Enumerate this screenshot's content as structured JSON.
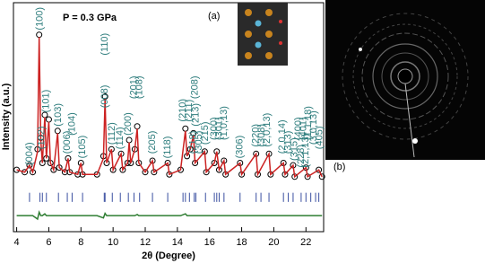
{
  "chart_data": {
    "type": "line",
    "x_label": "2θ (Degree)",
    "y_label": "Intensity (a.u.)",
    "annotations": [
      "P = 0.3 GPa",
      "(a)",
      "(b)"
    ],
    "xlim": [
      3.8,
      23.1
    ],
    "ylim": [
      0,
      100
    ],
    "xticks": [
      4,
      6,
      8,
      10,
      12,
      14,
      16,
      18,
      20,
      22
    ],
    "x": [
      4.0,
      4.5,
      4.8,
      5.0,
      5.3,
      5.4,
      5.5,
      5.6,
      5.75,
      5.85,
      6.0,
      6.1,
      6.3,
      6.55,
      6.65,
      7.0,
      7.2,
      7.3,
      7.8,
      8.0,
      8.1,
      9.0,
      9.4,
      9.5,
      9.6,
      9.9,
      10.0,
      10.5,
      10.6,
      10.9,
      11.0,
      11.1,
      11.35,
      11.5,
      11.6,
      12.0,
      12.45,
      12.55,
      13.4,
      13.5,
      14.2,
      14.5,
      14.6,
      14.8,
      15.0,
      15.1,
      15.7,
      15.8,
      16.3,
      16.45,
      16.6,
      16.9,
      17.0,
      17.9,
      18.0,
      18.9,
      19.0,
      19.7,
      19.8,
      20.6,
      20.7,
      21.2,
      21.3,
      22.0,
      22.1,
      22.8,
      23.0
    ],
    "series": [
      {
        "color": "#000000",
        "marker": "circle",
        "values": [
          27,
          26,
          29,
          26,
          36,
          86,
          41,
          30,
          51,
          32,
          49,
          30,
          27,
          44,
          28,
          26,
          32,
          26,
          25,
          30,
          25,
          25,
          33,
          59,
          30,
          36,
          27,
          34,
          27,
          30,
          40,
          30,
          36,
          46,
          30,
          26,
          31,
          26,
          30,
          25,
          27,
          45,
          33,
          36,
          43,
          30,
          35,
          26,
          30,
          35,
          27,
          31,
          25,
          30,
          25,
          34,
          25,
          34,
          25,
          30,
          25,
          29,
          24,
          28,
          24,
          27,
          24
        ]
      },
      {
        "color": "#cc2222",
        "values": [
          27,
          26,
          29,
          26,
          35,
          85,
          40,
          30,
          50,
          32,
          48,
          30,
          27,
          43,
          28,
          26,
          32,
          26,
          25,
          30,
          25,
          25,
          32,
          58,
          30,
          36,
          27,
          34,
          27,
          30,
          39,
          30,
          36,
          45,
          30,
          26,
          31,
          26,
          30,
          25,
          27,
          44,
          33,
          36,
          42,
          30,
          35,
          26,
          30,
          35,
          27,
          31,
          25,
          30,
          25,
          34,
          25,
          34,
          25,
          30,
          25,
          29,
          24,
          28,
          24,
          27,
          24
        ]
      },
      {
        "color": "#2e7d32",
        "values": [
          7,
          7,
          7,
          7,
          5.5,
          8.5,
          7,
          7,
          7.8,
          7,
          7,
          7,
          7,
          7,
          7,
          7,
          7,
          7,
          7,
          7,
          7,
          7,
          6,
          8,
          7,
          7,
          7,
          7,
          7,
          7,
          7,
          7,
          7,
          7.5,
          7,
          7,
          7,
          7,
          7,
          7,
          7,
          7.8,
          7,
          7,
          7,
          7,
          7,
          7,
          7,
          7,
          7,
          7,
          7,
          7,
          7,
          7,
          7,
          7,
          7,
          7,
          7,
          7,
          7,
          7,
          7,
          7,
          7
        ]
      }
    ],
    "bragg_color": "#3a4fa0",
    "bragg_positions": [
      4.8,
      5.45,
      5.6,
      5.85,
      6.6,
      7.15,
      7.45,
      8.1,
      9.45,
      9.5,
      9.95,
      10.45,
      10.95,
      11.3,
      11.65,
      12.45,
      13.4,
      14.35,
      14.5,
      14.75,
      15.05,
      15.15,
      15.75,
      16.3,
      16.45,
      16.6,
      16.9,
      17.9,
      18.9,
      19.2,
      19.7,
      20.6,
      20.9,
      21.2,
      21.7,
      22.0,
      22.3,
      22.6,
      22.8
    ],
    "label_color": "#2e7d7d",
    "peak_labels": [
      {
        "label": "(004)",
        "x": 4.8,
        "y": 29
      },
      {
        "label": "(100)",
        "x": 5.45,
        "y": 88
      },
      {
        "label": "(102)",
        "x": 5.55,
        "y": 36
      },
      {
        "label": "(101)",
        "x": 5.85,
        "y": 52
      },
      {
        "label": "(103)",
        "x": 6.6,
        "y": 46
      },
      {
        "label": "(006)",
        "x": 7.15,
        "y": 34
      },
      {
        "label": "(104)",
        "x": 7.45,
        "y": 42
      },
      {
        "label": "(105)",
        "x": 8.1,
        "y": 32
      },
      {
        "label": "(008)",
        "x": 9.5,
        "y": 54
      },
      {
        "label": "(110)",
        "x": 9.5,
        "y": 77
      },
      {
        "label": "(112)",
        "x": 9.95,
        "y": 38
      },
      {
        "label": "(114)",
        "x": 10.45,
        "y": 36
      },
      {
        "label": "(200)",
        "x": 10.95,
        "y": 42
      },
      {
        "label": "(201)",
        "x": 11.3,
        "y": 58
      },
      {
        "label": "(108)",
        "x": 11.65,
        "y": 58
      },
      {
        "label": "(205)",
        "x": 12.45,
        "y": 34
      },
      {
        "label": "(118)",
        "x": 13.4,
        "y": 32
      },
      {
        "label": "(210)",
        "x": 14.35,
        "y": 48
      },
      {
        "label": "(211)",
        "x": 14.75,
        "y": 48
      },
      {
        "label": "(208)",
        "x": 15.1,
        "y": 58
      },
      {
        "label": "(213)",
        "x": 15.15,
        "y": 46
      },
      {
        "label": "(218)",
        "x": 15.0,
        "y": 34
      },
      {
        "label": "(305)",
        "x": 15.35,
        "y": 34
      },
      {
        "label": "(215)",
        "x": 15.75,
        "y": 38
      },
      {
        "label": "(300)",
        "x": 16.3,
        "y": 40
      },
      {
        "label": "(301)",
        "x": 16.6,
        "y": 40
      },
      {
        "label": "(1,0,13)",
        "x": 16.9,
        "y": 40
      },
      {
        "label": "(306)",
        "x": 17.9,
        "y": 32
      },
      {
        "label": "(220)",
        "x": 18.9,
        "y": 37
      },
      {
        "label": "(308)",
        "x": 19.25,
        "y": 37
      },
      {
        "label": "(2,0,13)",
        "x": 19.6,
        "y": 37
      },
      {
        "label": "(2,0,14)",
        "x": 20.55,
        "y": 34
      },
      {
        "label": "(313)",
        "x": 20.9,
        "y": 34
      },
      {
        "label": "(315)",
        "x": 21.3,
        "y": 31
      },
      {
        "label": "(228)",
        "x": 21.7,
        "y": 28
      },
      {
        "label": "(2,1,13)",
        "x": 22.0,
        "y": 28
      },
      {
        "label": "(400)",
        "x": 21.55,
        "y": 40
      },
      {
        "label": "(401)",
        "x": 21.85,
        "y": 40
      },
      {
        "label": "(1,1,18)",
        "x": 22.15,
        "y": 40
      },
      {
        "label": "(3,0,13)",
        "x": 22.5,
        "y": 38
      },
      {
        "label": "(405)",
        "x": 22.85,
        "y": 36
      }
    ]
  }
}
